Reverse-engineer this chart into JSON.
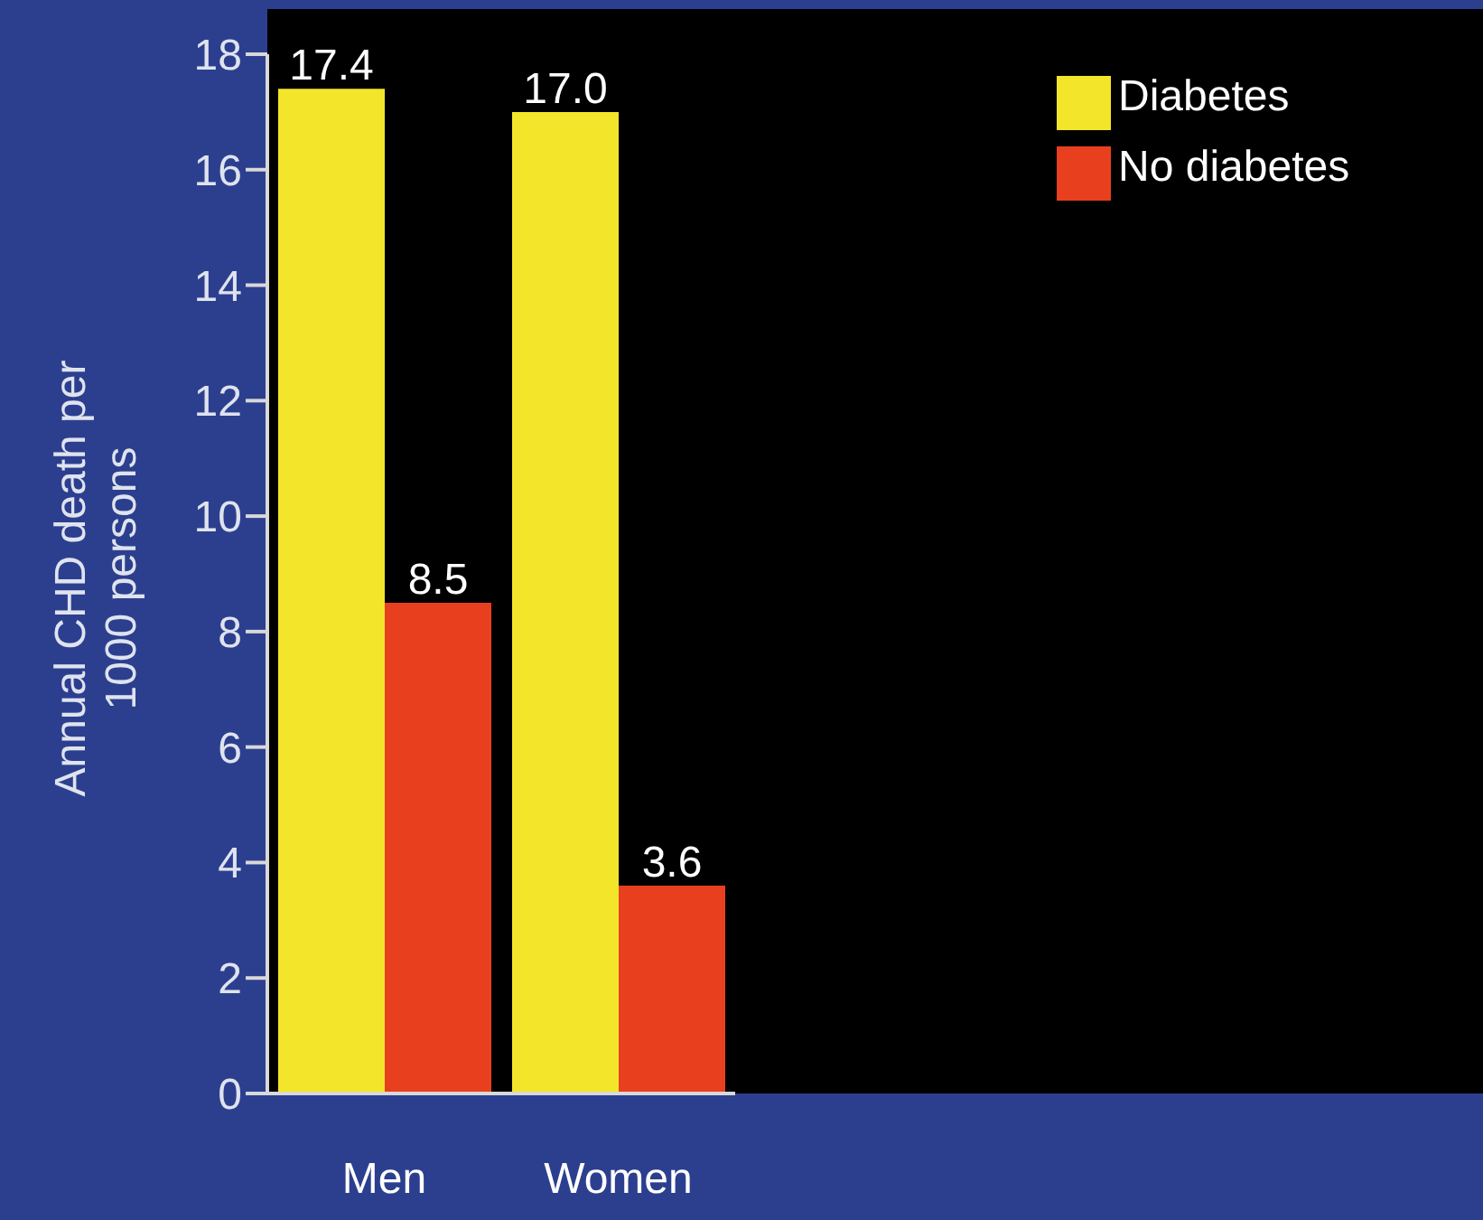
{
  "chart_data": {
    "type": "bar",
    "ylabel": "Annual CHD death per 1000 persons",
    "categories": [
      "Men",
      "Women"
    ],
    "series": [
      {
        "name": "Diabetes",
        "color": "#f3e62a",
        "values": [
          17.4,
          17.0
        ],
        "value_labels": [
          "17.4",
          "17.0"
        ]
      },
      {
        "name": "No diabetes",
        "color": "#e8401e",
        "values": [
          8.5,
          3.6
        ],
        "value_labels": [
          "8.5",
          "3.6"
        ]
      }
    ],
    "ylim": [
      0,
      18
    ],
    "yticks": [
      0,
      2,
      4,
      6,
      8,
      10,
      12,
      14,
      16,
      18
    ],
    "legend": "top right"
  }
}
